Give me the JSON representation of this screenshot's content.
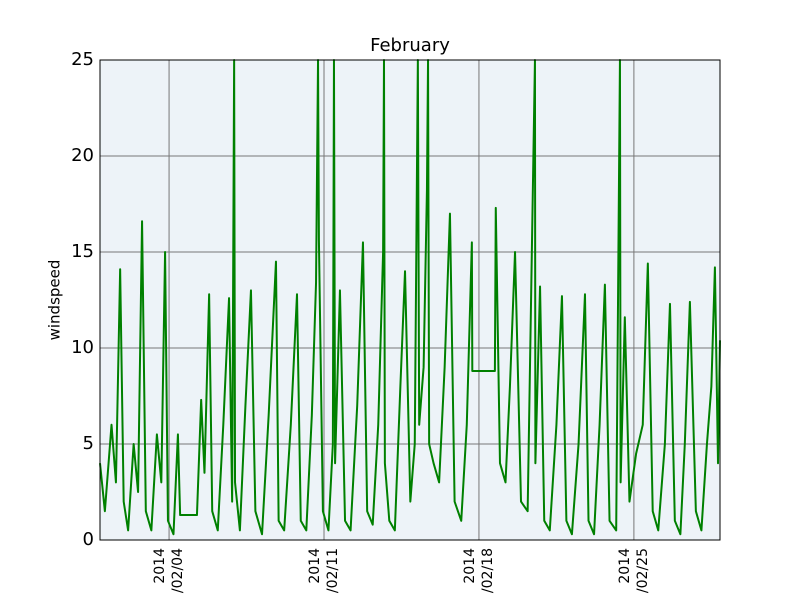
{
  "chart_data": {
    "type": "line",
    "title": "February",
    "ylabel": "windspeed",
    "x": [
      0.88,
      1.1,
      1.4,
      1.6,
      1.79,
      1.95,
      2.15,
      2.4,
      2.6,
      2.78,
      2.95,
      3.2,
      3.45,
      3.65,
      3.82,
      3.95,
      4.2,
      4.4,
      4.5,
      5.26,
      5.45,
      5.6,
      5.81,
      5.95,
      6.2,
      6.45,
      6.71,
      6.85,
      6.94,
      6.98,
      7.2,
      7.45,
      7.7,
      7.9,
      8.2,
      8.5,
      8.83,
      8.95,
      9.2,
      9.5,
      9.78,
      9.95,
      10.2,
      10.45,
      10.64,
      10.73,
      10.77,
      10.95,
      11.2,
      11.4,
      11.45,
      11.5,
      11.72,
      11.95,
      12.2,
      12.5,
      12.76,
      12.95,
      13.2,
      13.45,
      13.67,
      13.71,
      13.75,
      13.95,
      14.2,
      14.45,
      14.66,
      14.9,
      15.1,
      15.24,
      15.3,
      15.5,
      15.65,
      15.7,
      15.75,
      15.95,
      16.2,
      16.45,
      16.69,
      16.9,
      17.2,
      17.45,
      17.68,
      17.7,
      18.72,
      18.76,
      18.95,
      19.2,
      19.4,
      19.63,
      19.9,
      20.2,
      20.53,
      20.55,
      20.76,
      20.95,
      21.2,
      21.5,
      21.75,
      21.95,
      22.2,
      22.5,
      22.79,
      22.95,
      23.2,
      23.45,
      23.69,
      23.9,
      24.2,
      24.37,
      24.4,
      24.59,
      24.8,
      25.1,
      25.4,
      25.63,
      25.85,
      26.1,
      26.4,
      26.63,
      26.85,
      27.1,
      27.3,
      27.53,
      27.8,
      28.05,
      28.3,
      28.5,
      28.66,
      28.8,
      28.89
    ],
    "series": [
      {
        "name": "windspeed",
        "color": "#008000",
        "values": [
          4.0,
          1.5,
          6.0,
          3.0,
          14.1,
          2.0,
          0.5,
          5.0,
          2.5,
          16.6,
          1.5,
          0.5,
          5.5,
          3.0,
          15.0,
          1.0,
          0.3,
          5.5,
          1.3,
          1.3,
          7.3,
          3.5,
          12.8,
          1.5,
          0.5,
          6.0,
          12.6,
          2.0,
          25,
          3.0,
          0.5,
          7.0,
          13.0,
          1.5,
          0.3,
          6.5,
          14.5,
          1.0,
          0.5,
          6.0,
          12.8,
          1.0,
          0.5,
          6.5,
          13.4,
          25,
          15.6,
          1.5,
          0.5,
          5.0,
          25,
          4.0,
          13.0,
          1.0,
          0.5,
          7.0,
          15.5,
          1.5,
          0.8,
          6.0,
          15.0,
          25,
          4.0,
          1.0,
          0.5,
          8.0,
          14.0,
          2.0,
          5.0,
          25,
          6.0,
          9.0,
          18.2,
          25,
          5.0,
          4.0,
          3.0,
          9.0,
          17.0,
          2.0,
          1.0,
          6.0,
          15.5,
          8.8,
          8.8,
          17.3,
          4.0,
          3.0,
          8.0,
          15.0,
          2.0,
          1.5,
          25,
          4.0,
          13.2,
          1.0,
          0.5,
          6.0,
          12.7,
          1.0,
          0.3,
          5.0,
          12.8,
          1.0,
          0.3,
          6.0,
          13.3,
          1.0,
          0.5,
          25,
          3.0,
          11.6,
          2.0,
          4.5,
          6.0,
          14.4,
          1.5,
          0.5,
          5.0,
          12.3,
          1.0,
          0.3,
          5.0,
          12.4,
          1.5,
          0.5,
          5.0,
          8.0,
          14.2,
          4.0,
          10.4
        ]
      }
    ],
    "xlim": [
      0.88,
      28.89
    ],
    "xticks": [
      {
        "value": 4,
        "label": "2014/02/04"
      },
      {
        "value": 11,
        "label": "2014/02/11"
      },
      {
        "value": 18,
        "label": "2014/02/18"
      },
      {
        "value": 25,
        "label": "2014/02/25"
      }
    ],
    "ylim": [
      0,
      25
    ],
    "yticks": [
      0,
      5,
      10,
      15,
      20,
      25
    ],
    "grid": true
  }
}
